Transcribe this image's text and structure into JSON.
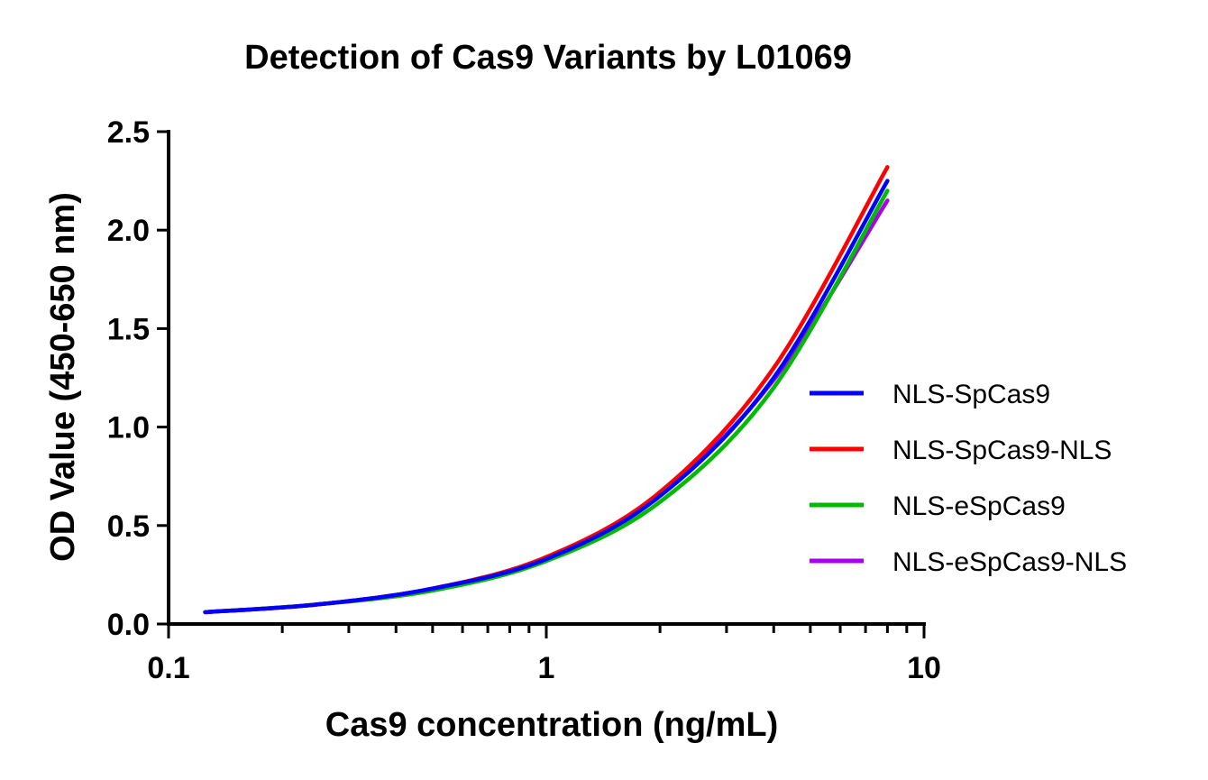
{
  "chart_data": {
    "type": "line",
    "title": "Detection of Cas9 Variants by L01069",
    "xlabel": "Cas9 concentration (ng/mL)",
    "ylabel": "OD Value (450-650 nm)",
    "xscale": "log",
    "xlim": [
      0.1,
      10
    ],
    "ylim": [
      0,
      2.5
    ],
    "xticks": [
      "0.1",
      "1",
      "10"
    ],
    "yticks": [
      "0.0",
      "0.5",
      "1.0",
      "1.5",
      "2.0",
      "2.5"
    ],
    "grid": false,
    "legend_position": "right",
    "series": [
      {
        "name": "NLS-SpCas9",
        "color": "#0000ff",
        "x": [
          0.125,
          0.25,
          0.5,
          1,
          2,
          4,
          8
        ],
        "y": [
          0.06,
          0.1,
          0.18,
          0.33,
          0.65,
          1.25,
          2.25
        ]
      },
      {
        "name": "NLS-SpCas9-NLS",
        "color": "#ff0000",
        "x": [
          0.125,
          0.25,
          0.5,
          1,
          2,
          4,
          8
        ],
        "y": [
          0.06,
          0.1,
          0.18,
          0.34,
          0.67,
          1.3,
          2.32
        ]
      },
      {
        "name": "NLS-eSpCas9",
        "color": "#00bb00",
        "x": [
          0.125,
          0.25,
          0.5,
          1,
          2,
          4,
          8
        ],
        "y": [
          0.06,
          0.1,
          0.17,
          0.32,
          0.62,
          1.2,
          2.2
        ]
      },
      {
        "name": "NLS-eSpCas9-NLS",
        "color": "#aa00ee",
        "x": [
          0.125,
          0.25,
          0.5,
          1,
          2,
          4,
          8
        ],
        "y": [
          0.06,
          0.1,
          0.18,
          0.33,
          0.66,
          1.24,
          2.15
        ]
      }
    ]
  }
}
